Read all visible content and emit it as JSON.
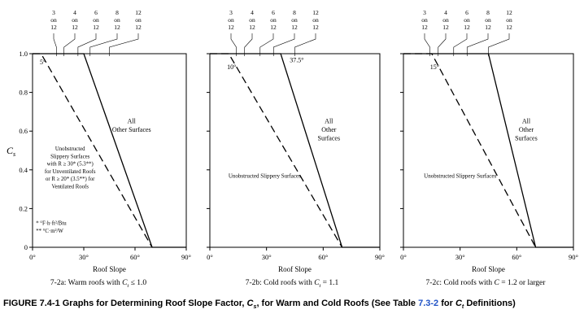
{
  "colors": {
    "link": "#2053c6",
    "ink": "#000000",
    "background": "#ffffff"
  },
  "figure_caption": {
    "part1": "FIGURE 7.4-1 Graphs for Determining Roof Slope Factor, ",
    "cs_main": "C",
    "cs_sub": "s",
    "part2": ", for Warm and Cold Roofs (See Table ",
    "link": "7.3-2",
    "part3": " for ",
    "ct_main": "C",
    "ct_sub": "t",
    "part4": " Definitions)"
  },
  "chart_data": [
    {
      "type": "line",
      "id": "7-2a",
      "caption": {
        "before": "7-2a: Warm roofs with ",
        "symbol": "C",
        "sub": "t",
        "after": " ≤ 1.0"
      },
      "x_axis": {
        "label": "Roof Slope",
        "min": 0,
        "max": 90,
        "ticks": [
          0,
          30,
          60,
          90
        ],
        "tick_labels": [
          "0°",
          "30°",
          "60°",
          "90°"
        ]
      },
      "y_axis": {
        "symbol": "C",
        "symbol_sub": "s",
        "min": 0,
        "max": 1.0,
        "ticks": [
          0,
          0.2,
          0.4,
          0.6,
          0.8,
          1.0
        ],
        "tick_labels": [
          "0",
          "0.2",
          "0.4",
          "0.6",
          "0.8",
          "1.0"
        ],
        "show_labels": true
      },
      "pitch_marks": [
        {
          "label_lines": [
            "3",
            "on",
            "12"
          ],
          "slope": 14.0
        },
        {
          "label_lines": [
            "4",
            "on",
            "12"
          ],
          "slope": 18.4
        },
        {
          "label_lines": [
            "6",
            "on",
            "12"
          ],
          "slope": 26.6
        },
        {
          "label_lines": [
            "8",
            "on",
            "12"
          ],
          "slope": 33.7
        },
        {
          "label_lines": [
            "12",
            "on",
            "12"
          ],
          "slope": 45.0
        }
      ],
      "series": [
        {
          "name": "All Other Surfaces",
          "style": "solid",
          "points": [
            [
              0,
              1.0
            ],
            [
              30,
              1.0
            ],
            [
              70,
              0
            ],
            [
              90,
              0
            ]
          ]
        },
        {
          "name": "Unobstructed Slippery Surfaces",
          "style": "dashed",
          "points": [
            [
              0,
              1.0
            ],
            [
              5,
              1.0
            ],
            [
              70,
              0
            ]
          ]
        }
      ],
      "annotations": [
        {
          "lines": [
            "5°"
          ],
          "x": 6,
          "y": 0.945,
          "size": 8
        },
        {
          "lines": [
            "All",
            "Other Surfaces"
          ],
          "x": 58,
          "y": 0.64,
          "size": 8
        },
        {
          "lines": [
            "Unobstructed",
            "Slippery Surfaces",
            "with R ≥ 30* (5.3**)",
            "for Unventilated Roofs",
            "or R ≥ 20* (3.5**) for",
            "Ventilated Roofs"
          ],
          "x": 22,
          "y": 0.5,
          "size": 6.8
        },
        {
          "lines": [
            "* °F·h·ft²/Btu",
            "** °C·m²/W"
          ],
          "x": 2,
          "y": 0.115,
          "size": 6.8,
          "anchor": "start"
        }
      ]
    },
    {
      "type": "line",
      "id": "7-2b",
      "caption": {
        "before": "7-2b: Cold roofs with ",
        "symbol": "C",
        "sub": "t",
        "after": " = 1.1"
      },
      "x_axis": {
        "label": "Roof Slope",
        "min": 0,
        "max": 90,
        "ticks": [
          0,
          30,
          60,
          90
        ],
        "tick_labels": [
          "0°",
          "30°",
          "60°",
          "90°"
        ]
      },
      "y_axis": {
        "symbol": "C",
        "symbol_sub": "s",
        "min": 0,
        "max": 1.0,
        "ticks": [
          0,
          0.2,
          0.4,
          0.6,
          0.8,
          1.0
        ],
        "tick_labels": [
          "0",
          "0.2",
          "0.4",
          "0.6",
          "0.8",
          "1.0"
        ],
        "show_labels": false
      },
      "pitch_marks": [
        {
          "label_lines": [
            "3",
            "on",
            "12"
          ],
          "slope": 14.0
        },
        {
          "label_lines": [
            "4",
            "on",
            "12"
          ],
          "slope": 18.4
        },
        {
          "label_lines": [
            "6",
            "on",
            "12"
          ],
          "slope": 26.6
        },
        {
          "label_lines": [
            "8",
            "on",
            "12"
          ],
          "slope": 33.7
        },
        {
          "label_lines": [
            "12",
            "on",
            "12"
          ],
          "slope": 45.0
        }
      ],
      "series": [
        {
          "name": "All Other Surfaces",
          "style": "solid",
          "points": [
            [
              0,
              1.0
            ],
            [
              37.5,
              1.0
            ],
            [
              70,
              0
            ],
            [
              90,
              0
            ]
          ]
        },
        {
          "name": "Unobstructed Slippery Surfaces",
          "style": "dashed",
          "points": [
            [
              0,
              1.0
            ],
            [
              10,
              1.0
            ],
            [
              70,
              0
            ]
          ]
        }
      ],
      "annotations": [
        {
          "lines": [
            "10°"
          ],
          "x": 11.5,
          "y": 0.92,
          "size": 8
        },
        {
          "lines": [
            "37.5°"
          ],
          "x": 46,
          "y": 0.955,
          "size": 8
        },
        {
          "lines": [
            "All",
            "Other",
            "Surfaces"
          ],
          "x": 63,
          "y": 0.64,
          "size": 8
        },
        {
          "lines": [
            "Unobstructed Slippery Surfaces"
          ],
          "x": 29,
          "y": 0.36,
          "size": 7
        }
      ]
    },
    {
      "type": "line",
      "id": "7-2c",
      "caption": {
        "before": "7-2c: Cold roofs with ",
        "symbol": "C",
        "sub": "",
        "after": " = 1.2 or larger"
      },
      "x_axis": {
        "label": "Roof Slope",
        "min": 0,
        "max": 90,
        "ticks": [
          0,
          30,
          60,
          90
        ],
        "tick_labels": [
          "0°",
          "30°",
          "60°",
          "90°"
        ]
      },
      "y_axis": {
        "symbol": "C",
        "symbol_sub": "s",
        "min": 0,
        "max": 1.0,
        "ticks": [
          0,
          0.2,
          0.4,
          0.6,
          0.8,
          1.0
        ],
        "tick_labels": [
          "0",
          "0.2",
          "0.4",
          "0.6",
          "0.8",
          "1.0"
        ],
        "show_labels": false
      },
      "pitch_marks": [
        {
          "label_lines": [
            "3",
            "on",
            "12"
          ],
          "slope": 14.0
        },
        {
          "label_lines": [
            "4",
            "on",
            "12"
          ],
          "slope": 18.4
        },
        {
          "label_lines": [
            "6",
            "on",
            "12"
          ],
          "slope": 26.6
        },
        {
          "label_lines": [
            "8",
            "on",
            "12"
          ],
          "slope": 33.7
        },
        {
          "label_lines": [
            "12",
            "on",
            "12"
          ],
          "slope": 45.0
        }
      ],
      "series": [
        {
          "name": "All Other Surfaces",
          "style": "solid",
          "points": [
            [
              0,
              1.0
            ],
            [
              45,
              1.0
            ],
            [
              70,
              0
            ],
            [
              90,
              0
            ]
          ]
        },
        {
          "name": "Unobstructed Slippery Surfaces",
          "style": "dashed",
          "points": [
            [
              0,
              1.0
            ],
            [
              15,
              1.0
            ],
            [
              70,
              0
            ]
          ]
        }
      ],
      "annotations": [
        {
          "lines": [
            "15°"
          ],
          "x": 16.5,
          "y": 0.92,
          "size": 8
        },
        {
          "lines": [
            "All",
            "Other",
            "Surfaces"
          ],
          "x": 65,
          "y": 0.64,
          "size": 8
        },
        {
          "lines": [
            "Unobstructed Slippery Surfaces"
          ],
          "x": 30,
          "y": 0.36,
          "size": 7
        }
      ]
    }
  ]
}
